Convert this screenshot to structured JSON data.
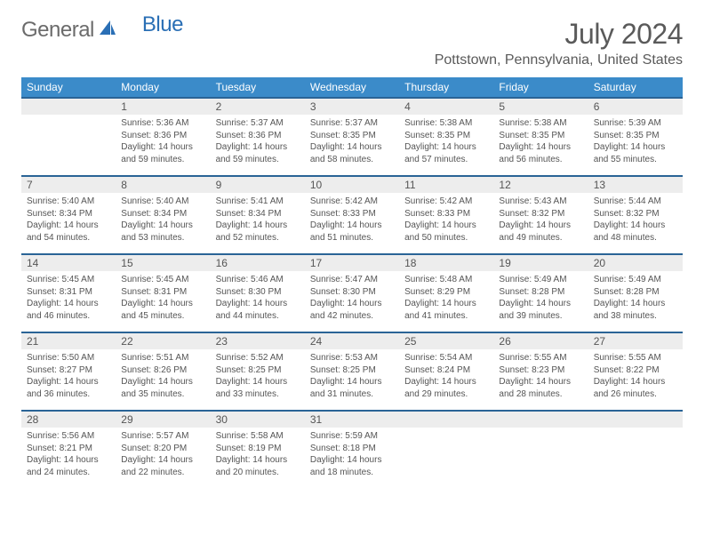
{
  "logo": {
    "text_general": "General",
    "text_blue": "Blue",
    "brand_color": "#2a6fb5"
  },
  "title": "July 2024",
  "location": "Pottstown, Pennsylvania, United States",
  "colors": {
    "header_bg": "#3b8bc9",
    "header_text": "#ffffff",
    "row_border": "#2a6496",
    "daynum_bg": "#ededed",
    "text": "#555555"
  },
  "weekdays": [
    "Sunday",
    "Monday",
    "Tuesday",
    "Wednesday",
    "Thursday",
    "Friday",
    "Saturday"
  ],
  "weeks": [
    [
      null,
      {
        "n": "1",
        "sr": "Sunrise: 5:36 AM",
        "ss": "Sunset: 8:36 PM",
        "dl1": "Daylight: 14 hours",
        "dl2": "and 59 minutes."
      },
      {
        "n": "2",
        "sr": "Sunrise: 5:37 AM",
        "ss": "Sunset: 8:36 PM",
        "dl1": "Daylight: 14 hours",
        "dl2": "and 59 minutes."
      },
      {
        "n": "3",
        "sr": "Sunrise: 5:37 AM",
        "ss": "Sunset: 8:35 PM",
        "dl1": "Daylight: 14 hours",
        "dl2": "and 58 minutes."
      },
      {
        "n": "4",
        "sr": "Sunrise: 5:38 AM",
        "ss": "Sunset: 8:35 PM",
        "dl1": "Daylight: 14 hours",
        "dl2": "and 57 minutes."
      },
      {
        "n": "5",
        "sr": "Sunrise: 5:38 AM",
        "ss": "Sunset: 8:35 PM",
        "dl1": "Daylight: 14 hours",
        "dl2": "and 56 minutes."
      },
      {
        "n": "6",
        "sr": "Sunrise: 5:39 AM",
        "ss": "Sunset: 8:35 PM",
        "dl1": "Daylight: 14 hours",
        "dl2": "and 55 minutes."
      }
    ],
    [
      {
        "n": "7",
        "sr": "Sunrise: 5:40 AM",
        "ss": "Sunset: 8:34 PM",
        "dl1": "Daylight: 14 hours",
        "dl2": "and 54 minutes."
      },
      {
        "n": "8",
        "sr": "Sunrise: 5:40 AM",
        "ss": "Sunset: 8:34 PM",
        "dl1": "Daylight: 14 hours",
        "dl2": "and 53 minutes."
      },
      {
        "n": "9",
        "sr": "Sunrise: 5:41 AM",
        "ss": "Sunset: 8:34 PM",
        "dl1": "Daylight: 14 hours",
        "dl2": "and 52 minutes."
      },
      {
        "n": "10",
        "sr": "Sunrise: 5:42 AM",
        "ss": "Sunset: 8:33 PM",
        "dl1": "Daylight: 14 hours",
        "dl2": "and 51 minutes."
      },
      {
        "n": "11",
        "sr": "Sunrise: 5:42 AM",
        "ss": "Sunset: 8:33 PM",
        "dl1": "Daylight: 14 hours",
        "dl2": "and 50 minutes."
      },
      {
        "n": "12",
        "sr": "Sunrise: 5:43 AM",
        "ss": "Sunset: 8:32 PM",
        "dl1": "Daylight: 14 hours",
        "dl2": "and 49 minutes."
      },
      {
        "n": "13",
        "sr": "Sunrise: 5:44 AM",
        "ss": "Sunset: 8:32 PM",
        "dl1": "Daylight: 14 hours",
        "dl2": "and 48 minutes."
      }
    ],
    [
      {
        "n": "14",
        "sr": "Sunrise: 5:45 AM",
        "ss": "Sunset: 8:31 PM",
        "dl1": "Daylight: 14 hours",
        "dl2": "and 46 minutes."
      },
      {
        "n": "15",
        "sr": "Sunrise: 5:45 AM",
        "ss": "Sunset: 8:31 PM",
        "dl1": "Daylight: 14 hours",
        "dl2": "and 45 minutes."
      },
      {
        "n": "16",
        "sr": "Sunrise: 5:46 AM",
        "ss": "Sunset: 8:30 PM",
        "dl1": "Daylight: 14 hours",
        "dl2": "and 44 minutes."
      },
      {
        "n": "17",
        "sr": "Sunrise: 5:47 AM",
        "ss": "Sunset: 8:30 PM",
        "dl1": "Daylight: 14 hours",
        "dl2": "and 42 minutes."
      },
      {
        "n": "18",
        "sr": "Sunrise: 5:48 AM",
        "ss": "Sunset: 8:29 PM",
        "dl1": "Daylight: 14 hours",
        "dl2": "and 41 minutes."
      },
      {
        "n": "19",
        "sr": "Sunrise: 5:49 AM",
        "ss": "Sunset: 8:28 PM",
        "dl1": "Daylight: 14 hours",
        "dl2": "and 39 minutes."
      },
      {
        "n": "20",
        "sr": "Sunrise: 5:49 AM",
        "ss": "Sunset: 8:28 PM",
        "dl1": "Daylight: 14 hours",
        "dl2": "and 38 minutes."
      }
    ],
    [
      {
        "n": "21",
        "sr": "Sunrise: 5:50 AM",
        "ss": "Sunset: 8:27 PM",
        "dl1": "Daylight: 14 hours",
        "dl2": "and 36 minutes."
      },
      {
        "n": "22",
        "sr": "Sunrise: 5:51 AM",
        "ss": "Sunset: 8:26 PM",
        "dl1": "Daylight: 14 hours",
        "dl2": "and 35 minutes."
      },
      {
        "n": "23",
        "sr": "Sunrise: 5:52 AM",
        "ss": "Sunset: 8:25 PM",
        "dl1": "Daylight: 14 hours",
        "dl2": "and 33 minutes."
      },
      {
        "n": "24",
        "sr": "Sunrise: 5:53 AM",
        "ss": "Sunset: 8:25 PM",
        "dl1": "Daylight: 14 hours",
        "dl2": "and 31 minutes."
      },
      {
        "n": "25",
        "sr": "Sunrise: 5:54 AM",
        "ss": "Sunset: 8:24 PM",
        "dl1": "Daylight: 14 hours",
        "dl2": "and 29 minutes."
      },
      {
        "n": "26",
        "sr": "Sunrise: 5:55 AM",
        "ss": "Sunset: 8:23 PM",
        "dl1": "Daylight: 14 hours",
        "dl2": "and 28 minutes."
      },
      {
        "n": "27",
        "sr": "Sunrise: 5:55 AM",
        "ss": "Sunset: 8:22 PM",
        "dl1": "Daylight: 14 hours",
        "dl2": "and 26 minutes."
      }
    ],
    [
      {
        "n": "28",
        "sr": "Sunrise: 5:56 AM",
        "ss": "Sunset: 8:21 PM",
        "dl1": "Daylight: 14 hours",
        "dl2": "and 24 minutes."
      },
      {
        "n": "29",
        "sr": "Sunrise: 5:57 AM",
        "ss": "Sunset: 8:20 PM",
        "dl1": "Daylight: 14 hours",
        "dl2": "and 22 minutes."
      },
      {
        "n": "30",
        "sr": "Sunrise: 5:58 AM",
        "ss": "Sunset: 8:19 PM",
        "dl1": "Daylight: 14 hours",
        "dl2": "and 20 minutes."
      },
      {
        "n": "31",
        "sr": "Sunrise: 5:59 AM",
        "ss": "Sunset: 8:18 PM",
        "dl1": "Daylight: 14 hours",
        "dl2": "and 18 minutes."
      },
      null,
      null,
      null
    ]
  ]
}
